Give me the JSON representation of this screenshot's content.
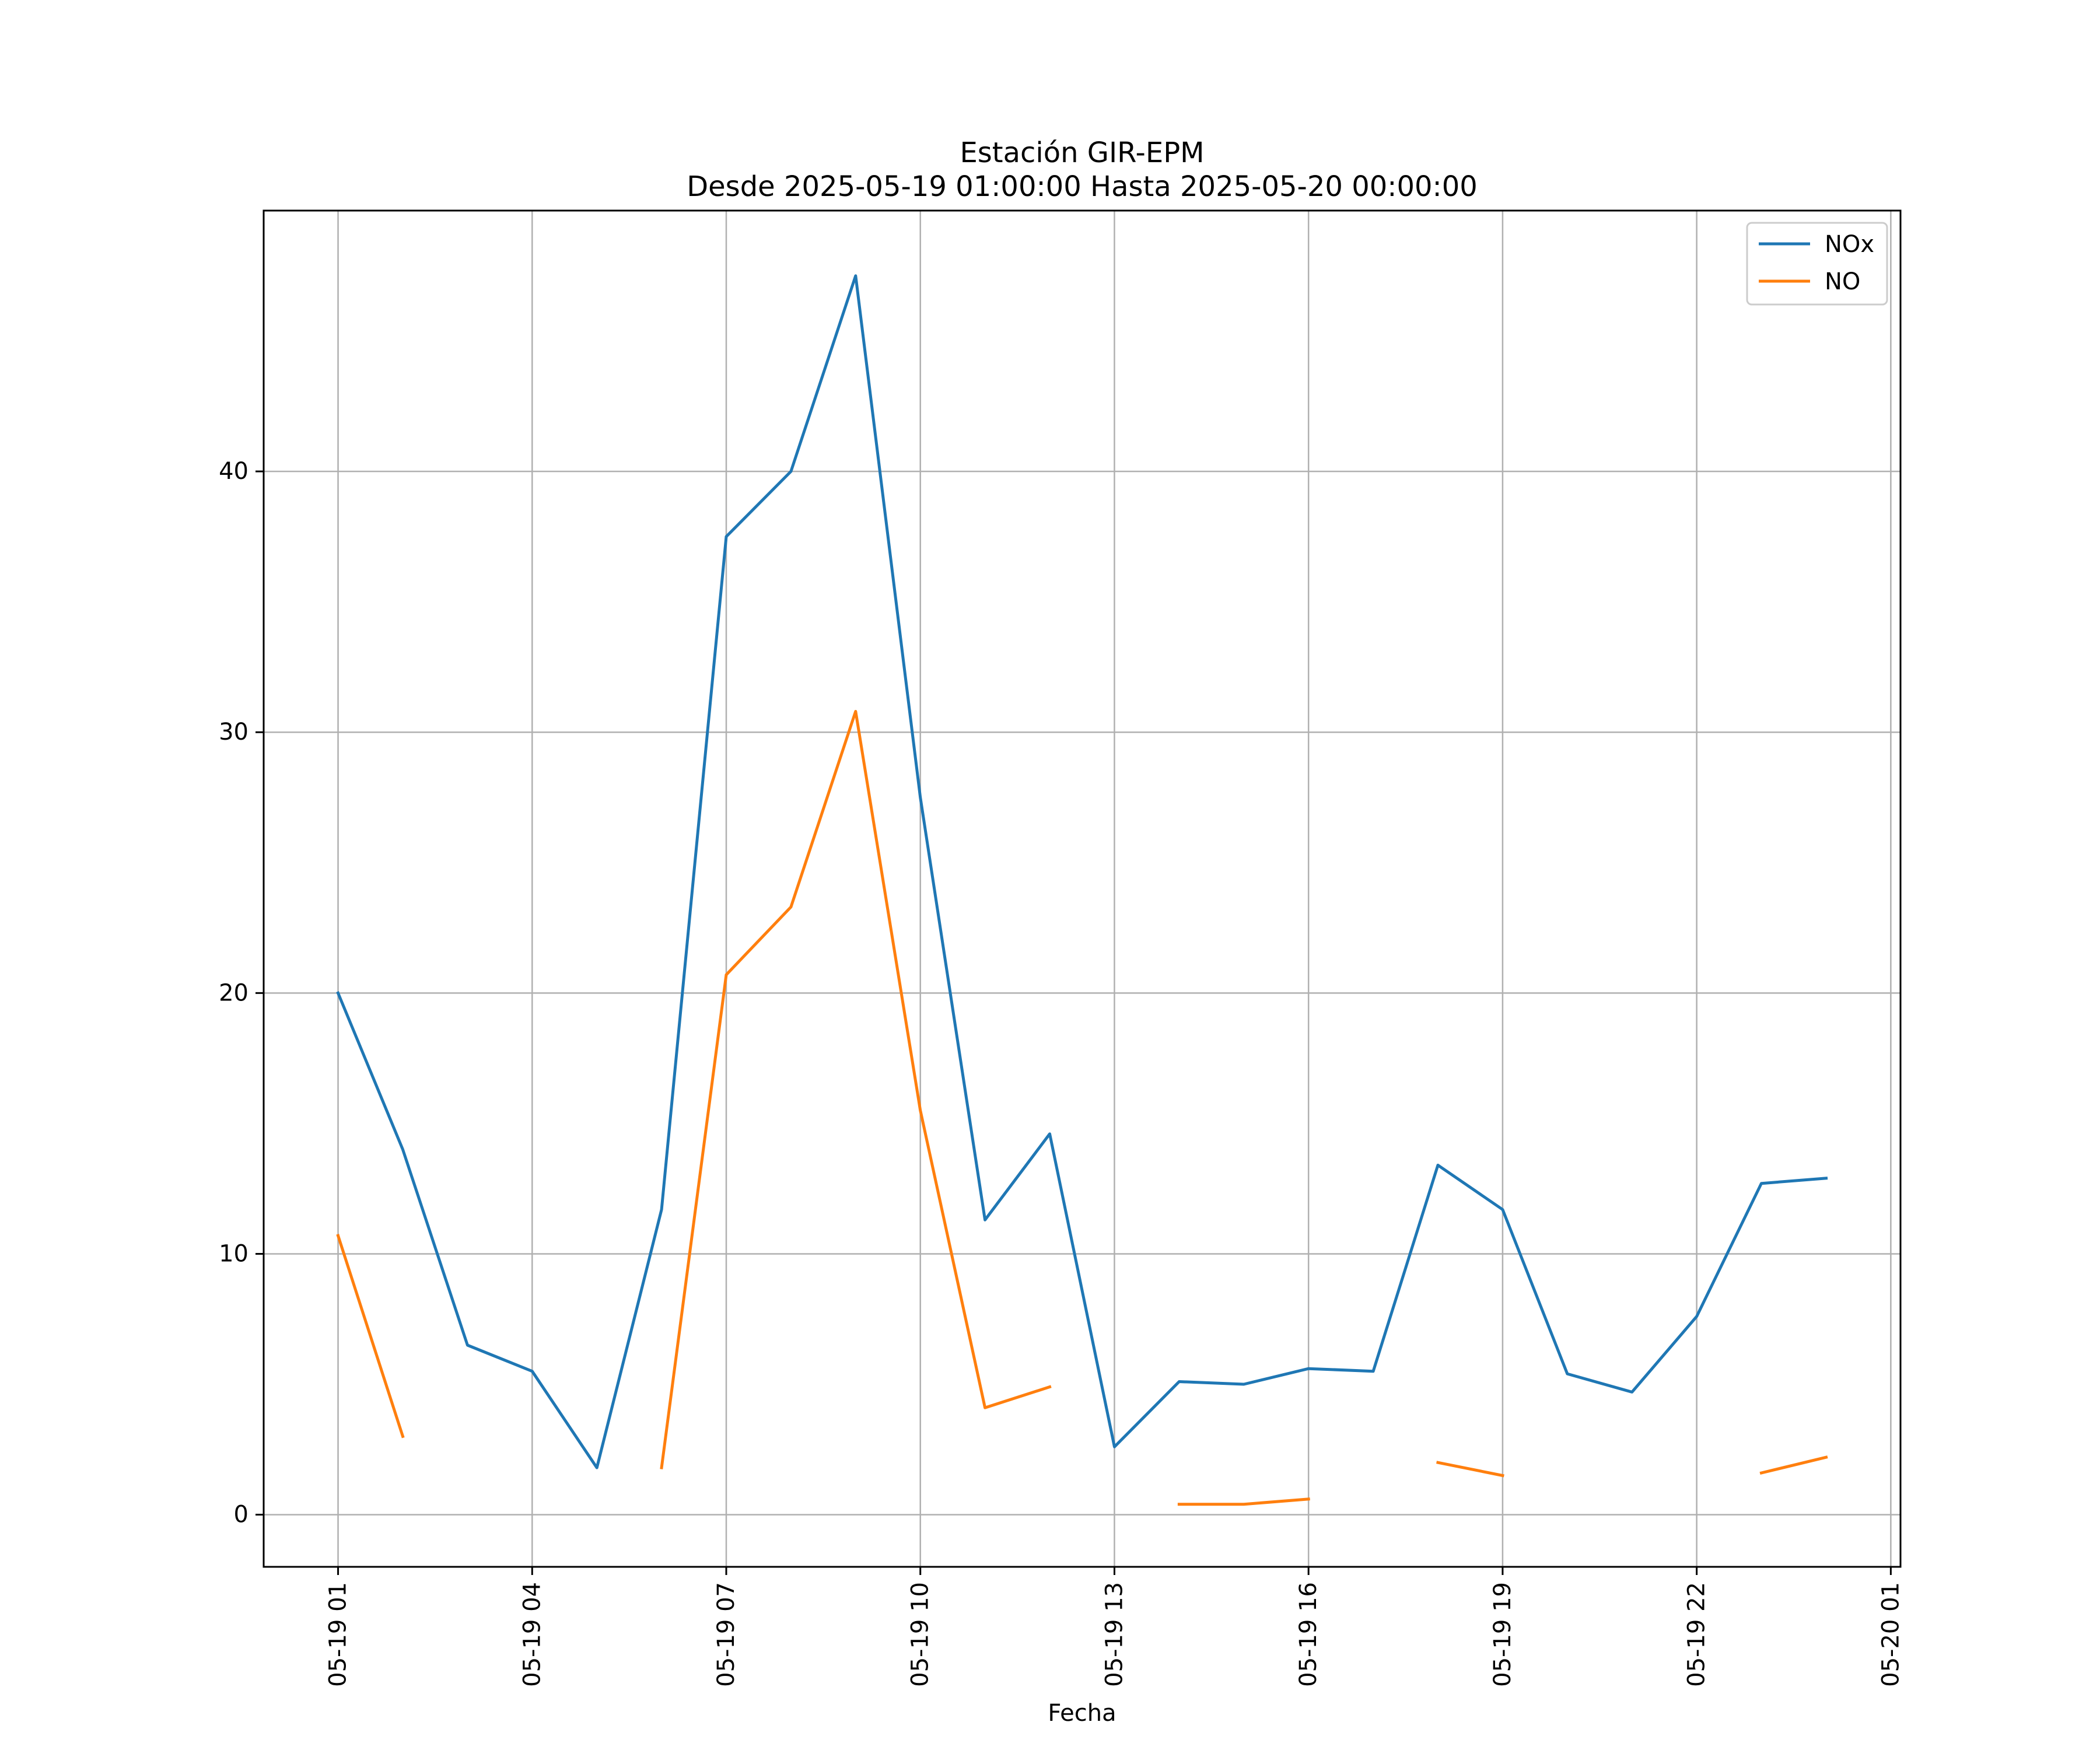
{
  "chart_data": {
    "type": "line",
    "title": "Estación GIR-EPM",
    "subtitle": "Desde 2025-05-19 01:00:00 Hasta 2025-05-20 00:00:00",
    "xlabel": "Fecha",
    "ylabel": "",
    "x": [
      "2025-05-19 01:00",
      "2025-05-19 02:00",
      "2025-05-19 03:00",
      "2025-05-19 04:00",
      "2025-05-19 05:00",
      "2025-05-19 06:00",
      "2025-05-19 07:00",
      "2025-05-19 08:00",
      "2025-05-19 09:00",
      "2025-05-19 10:00",
      "2025-05-19 11:00",
      "2025-05-19 12:00",
      "2025-05-19 13:00",
      "2025-05-19 14:00",
      "2025-05-19 15:00",
      "2025-05-19 16:00",
      "2025-05-19 17:00",
      "2025-05-19 18:00",
      "2025-05-19 19:00",
      "2025-05-19 20:00",
      "2025-05-19 21:00",
      "2025-05-19 22:00",
      "2025-05-19 23:00",
      "2025-05-20 00:00"
    ],
    "xlim": [
      "2025-05-18 23:51",
      "2025-05-20 01:09"
    ],
    "ylim": [
      -2.0,
      50.0
    ],
    "xticks": [
      "05-19 01",
      "05-19 04",
      "05-19 07",
      "05-19 10",
      "05-19 13",
      "05-19 16",
      "05-19 19",
      "05-19 22",
      "05-20 01"
    ],
    "yticks": [
      0,
      10,
      20,
      30,
      40
    ],
    "grid": true,
    "legend": "top-right",
    "series": [
      {
        "name": "NOx",
        "color": "#1f77b4",
        "values": [
          20.0,
          14.0,
          6.5,
          5.5,
          1.8,
          11.7,
          37.5,
          40.0,
          47.5,
          27.5,
          11.3,
          14.6,
          2.6,
          5.1,
          5.0,
          5.6,
          5.5,
          13.4,
          11.7,
          5.4,
          4.7,
          7.6,
          12.7,
          12.9
        ]
      },
      {
        "name": "NO",
        "color": "#ff7f0e",
        "values": [
          10.7,
          3.0,
          null,
          null,
          null,
          1.8,
          20.7,
          23.3,
          30.8,
          15.5,
          4.1,
          4.9,
          null,
          0.4,
          0.4,
          0.6,
          null,
          2.0,
          1.5,
          null,
          null,
          null,
          1.6,
          2.2
        ]
      }
    ]
  }
}
